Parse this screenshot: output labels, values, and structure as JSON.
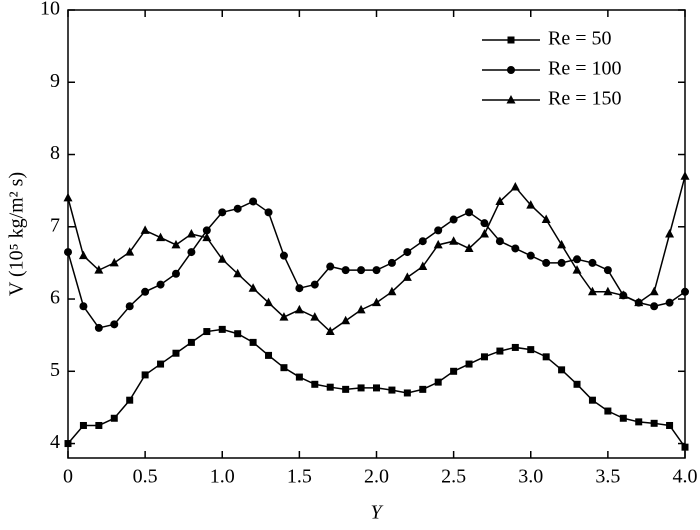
{
  "chart_data": {
    "type": "line",
    "xlabel": "Y",
    "ylabel": "V (10⁵ kg/m² s)",
    "x": [
      0,
      0.1,
      0.2,
      0.3,
      0.4,
      0.5,
      0.6,
      0.7,
      0.8,
      0.9,
      1.0,
      1.1,
      1.2,
      1.3,
      1.4,
      1.5,
      1.6,
      1.7,
      1.8,
      1.9,
      2.0,
      2.1,
      2.2,
      2.3,
      2.4,
      2.5,
      2.6,
      2.7,
      2.8,
      2.9,
      3.0,
      3.1,
      3.2,
      3.3,
      3.4,
      3.5,
      3.6,
      3.7,
      3.8,
      3.9,
      4.0
    ],
    "series": [
      {
        "name": "Re = 50",
        "color": "#000000",
        "marker": "square",
        "values": [
          4.0,
          4.25,
          4.25,
          4.35,
          4.6,
          4.95,
          5.1,
          5.25,
          5.4,
          5.55,
          5.58,
          5.52,
          5.4,
          5.22,
          5.05,
          4.92,
          4.82,
          4.78,
          4.75,
          4.77,
          4.77,
          4.74,
          4.7,
          4.75,
          4.85,
          5.0,
          5.1,
          5.2,
          5.28,
          5.33,
          5.3,
          5.2,
          5.02,
          4.82,
          4.6,
          4.45,
          4.35,
          4.3,
          4.28,
          4.25,
          3.95
        ]
      },
      {
        "name": "Re = 100",
        "color": "#000000",
        "marker": "circle",
        "values": [
          6.65,
          5.9,
          5.6,
          5.65,
          5.9,
          6.1,
          6.2,
          6.35,
          6.65,
          6.95,
          7.2,
          7.25,
          7.35,
          7.2,
          6.6,
          6.15,
          6.2,
          6.45,
          6.4,
          6.4,
          6.4,
          6.5,
          6.65,
          6.8,
          6.95,
          7.1,
          7.2,
          7.05,
          6.8,
          6.7,
          6.6,
          6.5,
          6.5,
          6.55,
          6.5,
          6.4,
          6.05,
          5.95,
          5.9,
          5.95,
          6.1
        ]
      },
      {
        "name": "Re = 150",
        "color": "#000000",
        "marker": "triangle",
        "values": [
          7.4,
          6.6,
          6.4,
          6.5,
          6.65,
          6.95,
          6.85,
          6.75,
          6.9,
          6.85,
          6.55,
          6.35,
          6.15,
          5.95,
          5.75,
          5.85,
          5.75,
          5.55,
          5.7,
          5.85,
          5.95,
          6.1,
          6.3,
          6.45,
          6.75,
          6.8,
          6.7,
          6.9,
          7.35,
          7.55,
          7.3,
          7.1,
          6.75,
          6.4,
          6.1,
          6.1,
          6.05,
          5.95,
          6.1,
          6.9,
          7.7
        ]
      }
    ],
    "xlim": [
      0,
      4.0
    ],
    "xticks": [
      0,
      0.5,
      {
        "value": 1.0,
        "label": "1.0"
      },
      1.5,
      {
        "value": 2.0,
        "label": "2.0"
      },
      2.5,
      {
        "value": 3.0,
        "label": "3.0"
      },
      3.5,
      {
        "value": 4.0,
        "label": "4.0"
      }
    ],
    "ylim": [
      3.8,
      10
    ],
    "yticks": [
      4,
      5,
      6,
      7,
      8,
      9,
      10
    ],
    "legend": "top-right",
    "grid": false
  }
}
